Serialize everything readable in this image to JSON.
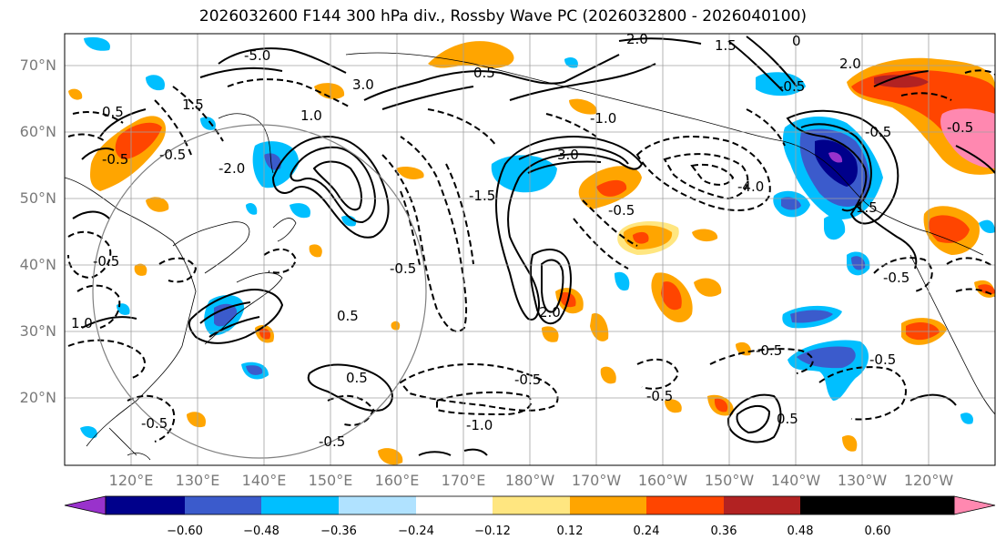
{
  "title": "2026032600 F144 300 hPa div., Rossby Wave PC (2026032800 - 2026040100)",
  "lat_labels": [
    "70°N",
    "60°N",
    "50°N",
    "40°N",
    "30°N",
    "20°N"
  ],
  "lon_labels": [
    "120°E",
    "130°E",
    "140°E",
    "150°E",
    "160°E",
    "170°E",
    "180°W",
    "170°W",
    "160°W",
    "150°W",
    "140°W",
    "130°W",
    "120°W"
  ],
  "colorbar": {
    "colors": [
      "#9932cc",
      "#00008b",
      "#3b5bcc",
      "#00bfff",
      "#b0e2ff",
      "#ffffff",
      "#ffe680",
      "#ffa500",
      "#ff4500",
      "#b22222",
      "#ff88b0"
    ],
    "ticks": [
      "−0.60",
      "−0.48",
      "−0.36",
      "−0.24",
      "−0.12",
      "0.12",
      "0.24",
      "0.36",
      "0.48",
      "0.60"
    ]
  },
  "contour_labels": [
    "-5.0",
    "2.0",
    "1.5",
    "0",
    "3.0",
    "1.0",
    "0.5",
    "-0.5",
    "1.5",
    "3.0",
    "2.0",
    "-1.5",
    "-0.5",
    "0.5",
    "-1.0",
    "-0.5",
    "-0.5",
    "0.5",
    "-4.0",
    "1.5",
    "-0.5",
    "-0.5",
    "2.0",
    "0.5",
    "-0.5",
    "-0.5",
    "0.5",
    "-0.5",
    "-1.0",
    "-0.5",
    "1.0",
    "-0.5",
    "-0.5",
    "-0.5",
    "-0.5",
    "-2.0",
    "-0.5"
  ]
}
